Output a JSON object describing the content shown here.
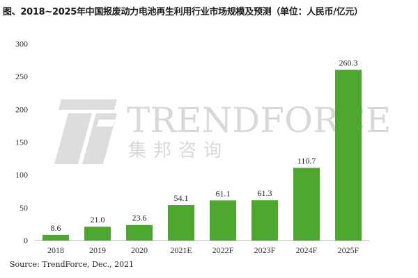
{
  "chart_data": {
    "type": "bar",
    "title": "图、2018~2025年中国报废动力电池再生利用行业市场规模及预测（单位：人民币/亿元）",
    "categories": [
      "2018",
      "2019",
      "2020",
      "2021E",
      "2022F",
      "2023F",
      "2024F",
      "2025F"
    ],
    "values": [
      8.6,
      21.0,
      23.6,
      54.1,
      61.1,
      61.3,
      110.7,
      260.3
    ],
    "value_labels": [
      "8.6",
      "21.0",
      "23.6",
      "54.1",
      "61.1",
      "61.3",
      "110.7",
      "260.3"
    ],
    "y_ticks": [
      "0",
      "50",
      "100",
      "150",
      "200",
      "250",
      "300"
    ],
    "ylim": [
      0,
      300
    ],
    "xlabel": "",
    "ylabel": "",
    "grid": false,
    "legend": "none",
    "bar_color": "#4ea72e",
    "source": "Source: TrendForce, Dec., 2021"
  },
  "watermark": {
    "brand": "TRENDFORCE",
    "chinese": "集邦咨询",
    "icon": "trendforce-logo-icon",
    "color": "#d4d4d4"
  }
}
